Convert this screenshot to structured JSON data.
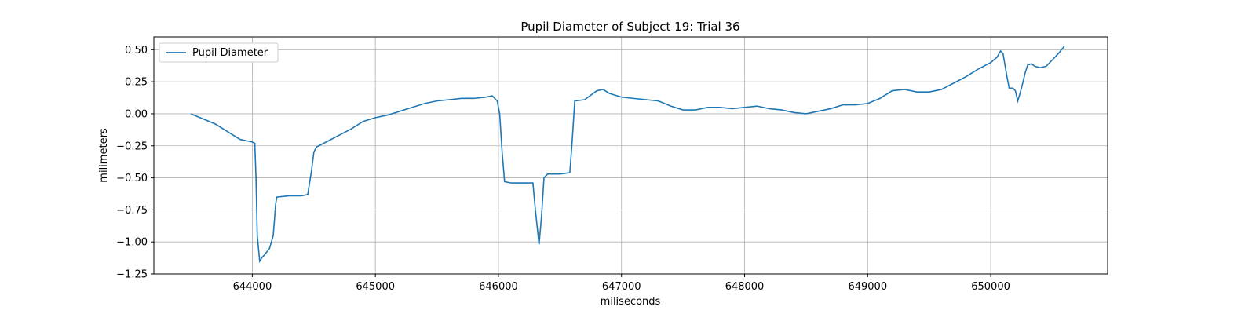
{
  "chart_data": {
    "type": "line",
    "title": "Pupil Diameter of Subject 19: Trial 36",
    "xlabel": "miliseconds",
    "ylabel": "milimeters",
    "xlim": [
      643200,
      650950
    ],
    "ylim": [
      -1.25,
      0.6
    ],
    "xticks": [
      644000,
      645000,
      646000,
      647000,
      648000,
      649000,
      650000
    ],
    "xtick_labels": [
      "644000",
      "645000",
      "646000",
      "647000",
      "648000",
      "649000",
      "650000"
    ],
    "yticks": [
      -1.25,
      -1.0,
      -0.75,
      -0.5,
      -0.25,
      0.0,
      0.25,
      0.5
    ],
    "ytick_labels": [
      "−1.25",
      "−1.00",
      "−0.75",
      "−0.50",
      "−0.25",
      "0.00",
      "0.25",
      "0.50"
    ],
    "grid": true,
    "legend_position": "top-left",
    "series": [
      {
        "name": "Pupil Diameter",
        "color": "#1f77b4",
        "points": [
          [
            643500,
            0.0
          ],
          [
            643550,
            -0.02
          ],
          [
            643600,
            -0.04
          ],
          [
            643650,
            -0.06
          ],
          [
            643700,
            -0.08
          ],
          [
            643750,
            -0.11
          ],
          [
            643800,
            -0.14
          ],
          [
            643850,
            -0.17
          ],
          [
            643900,
            -0.2
          ],
          [
            643950,
            -0.21
          ],
          [
            644000,
            -0.22
          ],
          [
            644020,
            -0.23
          ],
          [
            644030,
            -0.5
          ],
          [
            644040,
            -0.95
          ],
          [
            644060,
            -1.15
          ],
          [
            644080,
            -1.12
          ],
          [
            644100,
            -1.1
          ],
          [
            644140,
            -1.05
          ],
          [
            644170,
            -0.95
          ],
          [
            644190,
            -0.7
          ],
          [
            644200,
            -0.65
          ],
          [
            644300,
            -0.64
          ],
          [
            644400,
            -0.64
          ],
          [
            644450,
            -0.63
          ],
          [
            644480,
            -0.45
          ],
          [
            644500,
            -0.3
          ],
          [
            644520,
            -0.26
          ],
          [
            644600,
            -0.22
          ],
          [
            644700,
            -0.17
          ],
          [
            644800,
            -0.12
          ],
          [
            644900,
            -0.06
          ],
          [
            645000,
            -0.03
          ],
          [
            645100,
            -0.01
          ],
          [
            645200,
            0.02
          ],
          [
            645300,
            0.05
          ],
          [
            645400,
            0.08
          ],
          [
            645500,
            0.1
          ],
          [
            645600,
            0.11
          ],
          [
            645700,
            0.12
          ],
          [
            645800,
            0.12
          ],
          [
            645900,
            0.13
          ],
          [
            645950,
            0.14
          ],
          [
            645990,
            0.1
          ],
          [
            646010,
            0.0
          ],
          [
            646030,
            -0.3
          ],
          [
            646050,
            -0.53
          ],
          [
            646100,
            -0.54
          ],
          [
            646200,
            -0.54
          ],
          [
            646280,
            -0.54
          ],
          [
            646300,
            -0.75
          ],
          [
            646330,
            -1.02
          ],
          [
            646350,
            -0.8
          ],
          [
            646370,
            -0.5
          ],
          [
            646400,
            -0.47
          ],
          [
            646500,
            -0.47
          ],
          [
            646580,
            -0.46
          ],
          [
            646600,
            -0.2
          ],
          [
            646620,
            0.1
          ],
          [
            646700,
            0.11
          ],
          [
            646800,
            0.18
          ],
          [
            646850,
            0.19
          ],
          [
            646900,
            0.16
          ],
          [
            647000,
            0.13
          ],
          [
            647100,
            0.12
          ],
          [
            647200,
            0.11
          ],
          [
            647300,
            0.1
          ],
          [
            647400,
            0.06
          ],
          [
            647500,
            0.03
          ],
          [
            647600,
            0.03
          ],
          [
            647700,
            0.05
          ],
          [
            647800,
            0.05
          ],
          [
            647900,
            0.04
          ],
          [
            648000,
            0.05
          ],
          [
            648100,
            0.06
          ],
          [
            648200,
            0.04
          ],
          [
            648300,
            0.03
          ],
          [
            648400,
            0.01
          ],
          [
            648500,
            0.0
          ],
          [
            648600,
            0.02
          ],
          [
            648700,
            0.04
          ],
          [
            648800,
            0.07
          ],
          [
            648900,
            0.07
          ],
          [
            649000,
            0.08
          ],
          [
            649100,
            0.12
          ],
          [
            649200,
            0.18
          ],
          [
            649300,
            0.19
          ],
          [
            649400,
            0.17
          ],
          [
            649500,
            0.17
          ],
          [
            649600,
            0.19
          ],
          [
            649700,
            0.24
          ],
          [
            649800,
            0.29
          ],
          [
            649900,
            0.35
          ],
          [
            650000,
            0.4
          ],
          [
            650050,
            0.44
          ],
          [
            650080,
            0.49
          ],
          [
            650100,
            0.47
          ],
          [
            650130,
            0.3
          ],
          [
            650150,
            0.2
          ],
          [
            650180,
            0.2
          ],
          [
            650200,
            0.18
          ],
          [
            650220,
            0.1
          ],
          [
            650250,
            0.2
          ],
          [
            650280,
            0.32
          ],
          [
            650300,
            0.38
          ],
          [
            650330,
            0.39
          ],
          [
            650360,
            0.37
          ],
          [
            650400,
            0.36
          ],
          [
            650450,
            0.37
          ],
          [
            650500,
            0.42
          ],
          [
            650550,
            0.47
          ],
          [
            650600,
            0.53
          ]
        ]
      }
    ]
  }
}
